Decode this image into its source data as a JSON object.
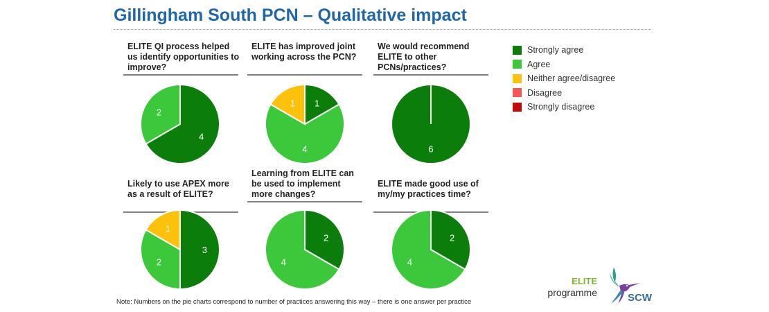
{
  "title": "Gillingham South PCN – Qualitative impact",
  "colors": {
    "Strongly agree": "#0b7d0b",
    "Agree": "#3bc93b",
    "Neither agree/disagree": "#fcc10a",
    "Disagree": "#f55555",
    "Strongly disagree": "#c30a0a"
  },
  "legend": [
    "Strongly agree",
    "Agree",
    "Neither agree/disagree",
    "Disagree",
    "Strongly disagree"
  ],
  "chart_data": [
    {
      "type": "pie",
      "title": "ELITE QI process helped us identify opportunities to improve?",
      "categories": [
        "Strongly agree",
        "Agree"
      ],
      "values": [
        4,
        2
      ]
    },
    {
      "type": "pie",
      "title": "ELITE has improved joint working across the PCN?",
      "categories": [
        "Strongly agree",
        "Agree",
        "Neither agree/disagree"
      ],
      "values": [
        1,
        4,
        1
      ]
    },
    {
      "type": "pie",
      "title": "We would recommend ELITE to other PCNs/practices?",
      "categories": [
        "Strongly agree"
      ],
      "values": [
        6
      ]
    },
    {
      "type": "pie",
      "title": "Likely to use APEX more as a result of ELITE?",
      "categories": [
        "Strongly agree",
        "Agree",
        "Neither agree/disagree"
      ],
      "values": [
        3,
        2,
        1
      ]
    },
    {
      "type": "pie",
      "title": "Learning from ELITE can be used to implement more changes?",
      "categories": [
        "Strongly agree",
        "Agree"
      ],
      "values": [
        2,
        4
      ]
    },
    {
      "type": "pie",
      "title": "ELITE made good use of my/my practices time?",
      "categories": [
        "Strongly agree",
        "Agree"
      ],
      "values": [
        2,
        4
      ]
    }
  ],
  "footnote": "Note: Numbers on the pie charts correspond to number of practices answering this way – there is one answer per practice",
  "logo": {
    "elite": "ELITE",
    "programme": "programme",
    "scw": "SCW"
  }
}
